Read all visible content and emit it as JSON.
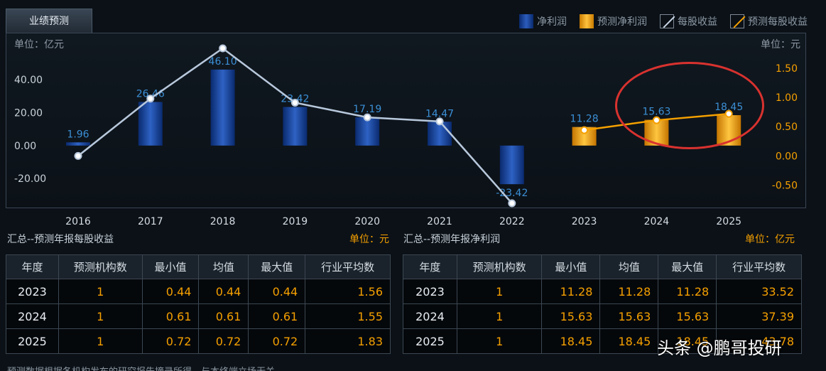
{
  "tab_label": "业绩预测",
  "legend": [
    {
      "label": "净利润",
      "icon": "blue-bar-swatch"
    },
    {
      "label": "预测净利润",
      "icon": "orange-bar-swatch"
    },
    {
      "label": "每股收益",
      "icon": "white-line-swatch"
    },
    {
      "label": "预测每股收益",
      "icon": "orange-line-swatch"
    }
  ],
  "colors": {
    "actual_bar": "#1a4aa8",
    "forecast_bar": "#f5a000",
    "actual_line": "#b8c8dc",
    "forecast_line": "#f5a000",
    "left_axis": "#c9d2da",
    "right_axis": "#f5a000",
    "value_label": "#3b8fd6",
    "annotation": "#d8322f"
  },
  "chart_data": {
    "type": "bar",
    "left_unit": "单位：亿元",
    "right_unit": "单位：元",
    "categories": [
      "2016",
      "2017",
      "2018",
      "2019",
      "2020",
      "2021",
      "2022",
      "2023",
      "2024",
      "2025"
    ],
    "left_ticks": [
      "40.00",
      "20.00",
      "0.00",
      "-20.00"
    ],
    "left_tick_values": [
      40,
      20,
      0,
      -20
    ],
    "right_ticks": [
      "1.50",
      "1.00",
      "0.50",
      "0.00",
      "-0.50"
    ],
    "right_tick_values": [
      1.5,
      1.0,
      0.5,
      0.0,
      -0.5
    ],
    "ylim_left": [
      -35,
      59
    ],
    "ylim_right": [
      -0.81,
      1.84
    ],
    "series": [
      {
        "name": "净利润",
        "kind": "bar",
        "values": [
          1.96,
          26.46,
          46.1,
          23.42,
          17.19,
          14.47,
          -23.42,
          null,
          null,
          null
        ]
      },
      {
        "name": "预测净利润",
        "kind": "bar",
        "values": [
          null,
          null,
          null,
          null,
          null,
          null,
          null,
          11.28,
          15.63,
          18.45
        ]
      },
      {
        "name": "每股收益",
        "kind": "line",
        "values": [
          0.0,
          0.98,
          1.84,
          0.91,
          0.66,
          0.59,
          -0.81,
          null,
          null,
          null
        ]
      },
      {
        "name": "预测每股收益",
        "kind": "line",
        "values": [
          null,
          null,
          null,
          null,
          null,
          null,
          null,
          0.44,
          0.61,
          0.72
        ]
      }
    ],
    "bar_labels": [
      "1.96",
      "26.46",
      "46.10",
      "23.42",
      "17.19",
      "14.47",
      "-23.42",
      "11.28",
      "15.63",
      "18.45"
    ]
  },
  "eps_table": {
    "title": "汇总--预测年报每股收益",
    "unit": "单位：元",
    "headers": [
      "年度",
      "预测机构数",
      "最小值",
      "均值",
      "最大值",
      "行业平均数"
    ],
    "rows": [
      [
        "2023",
        "1",
        "0.44",
        "0.44",
        "0.44",
        "1.56"
      ],
      [
        "2024",
        "1",
        "0.61",
        "0.61",
        "0.61",
        "1.55"
      ],
      [
        "2025",
        "1",
        "0.72",
        "0.72",
        "0.72",
        "1.83"
      ]
    ]
  },
  "profit_table": {
    "title": "汇总--预测年报净利润",
    "unit": "单位：亿元",
    "headers": [
      "年度",
      "预测机构数",
      "最小值",
      "均值",
      "最大值",
      "行业平均数"
    ],
    "rows": [
      [
        "2023",
        "1",
        "11.28",
        "11.28",
        "11.28",
        "33.52"
      ],
      [
        "2024",
        "1",
        "15.63",
        "15.63",
        "15.63",
        "37.39"
      ],
      [
        "2025",
        "1",
        "18.45",
        "18.45",
        "18.45",
        "43.78"
      ]
    ]
  },
  "footer": "预测数据根据各机构发布的研究报告摘录所得，与本终端立场无关",
  "watermark": "头条 @鹏哥投研"
}
